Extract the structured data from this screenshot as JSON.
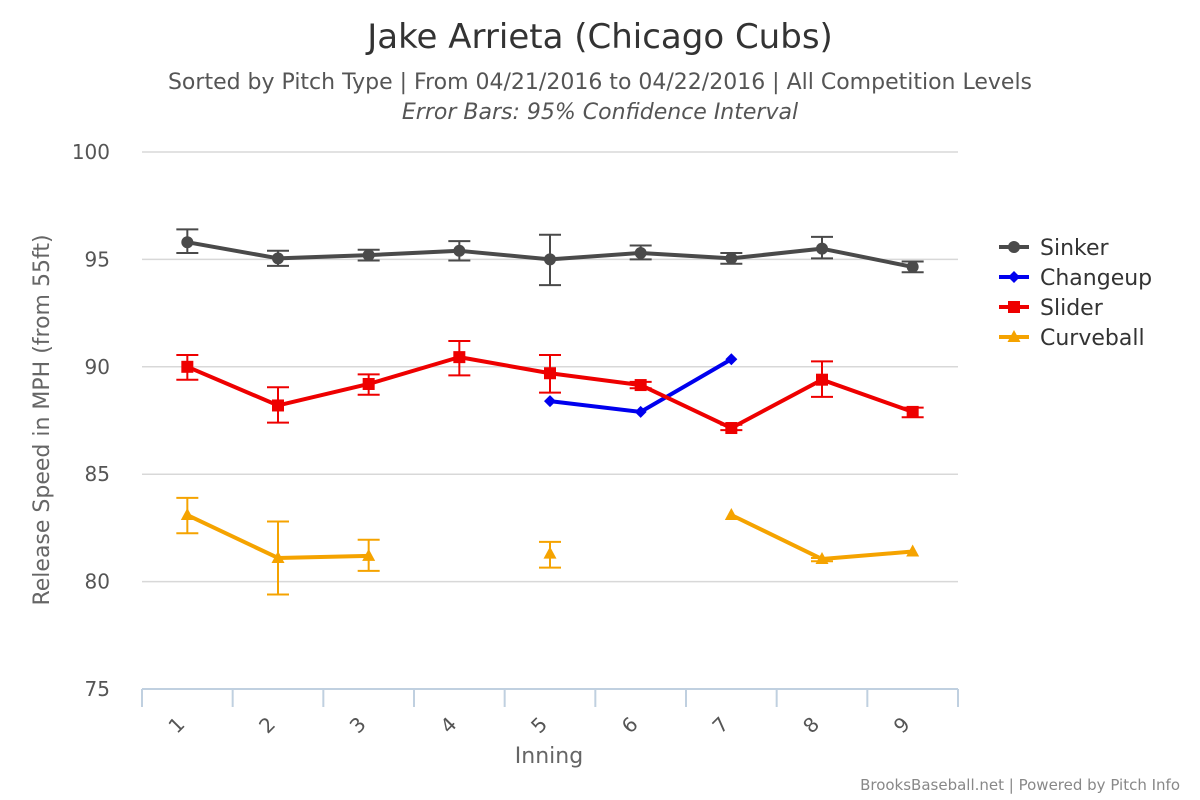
{
  "chart_data": {
    "type": "line",
    "title": "Jake Arrieta (Chicago Cubs)",
    "subtitle": "Sorted by Pitch Type | From 04/21/2016 to 04/22/2016 | All Competition Levels",
    "subtitle2": "Error Bars: 95% Confidence Interval",
    "xlabel": "Inning",
    "ylabel": "Release Speed in MPH (from 55ft)",
    "categories": [
      "1",
      "2",
      "3",
      "4",
      "5",
      "6",
      "7",
      "8",
      "9"
    ],
    "ylim": [
      75,
      100
    ],
    "yticks": [
      75,
      80,
      85,
      90,
      95,
      100
    ],
    "grid": true,
    "legend_position": "right",
    "series": [
      {
        "name": "Sinker",
        "color": "#4a4a4a",
        "marker": "circle",
        "values": [
          95.8,
          95.05,
          95.2,
          95.4,
          95.0,
          95.3,
          95.05,
          95.5,
          94.65
        ],
        "error_low": [
          95.3,
          94.7,
          94.95,
          94.95,
          93.8,
          95.0,
          94.8,
          95.05,
          94.4
        ],
        "error_high": [
          96.4,
          95.4,
          95.45,
          95.85,
          96.15,
          95.65,
          95.3,
          96.05,
          94.9
        ]
      },
      {
        "name": "Changeup",
        "color": "#0000ee",
        "marker": "diamond",
        "values": [
          null,
          null,
          null,
          null,
          88.4,
          87.9,
          90.35,
          null,
          null
        ],
        "error_low": [
          null,
          null,
          null,
          null,
          null,
          null,
          null,
          null,
          null
        ],
        "error_high": [
          null,
          null,
          null,
          null,
          null,
          null,
          null,
          null,
          null
        ]
      },
      {
        "name": "Slider",
        "color": "#ee0000",
        "marker": "square",
        "values": [
          90.0,
          88.2,
          89.2,
          90.45,
          89.7,
          89.15,
          87.15,
          89.4,
          87.9
        ],
        "error_low": [
          89.4,
          87.4,
          88.7,
          89.6,
          88.8,
          89.0,
          87.05,
          88.6,
          87.65
        ],
        "error_high": [
          90.55,
          89.05,
          89.65,
          91.2,
          90.55,
          89.3,
          87.3,
          90.25,
          88.1
        ]
      },
      {
        "name": "Curveball",
        "color": "#f5a300",
        "marker": "triangle",
        "values": [
          83.1,
          81.1,
          81.2,
          null,
          81.3,
          null,
          83.1,
          81.05,
          81.4
        ],
        "error_low": [
          82.25,
          79.4,
          80.5,
          null,
          80.65,
          null,
          null,
          80.95,
          null
        ],
        "error_high": [
          83.9,
          82.8,
          81.95,
          null,
          81.85,
          null,
          null,
          81.1,
          null
        ]
      }
    ],
    "credits": "BrooksBaseball.net | Powered by Pitch Info"
  }
}
